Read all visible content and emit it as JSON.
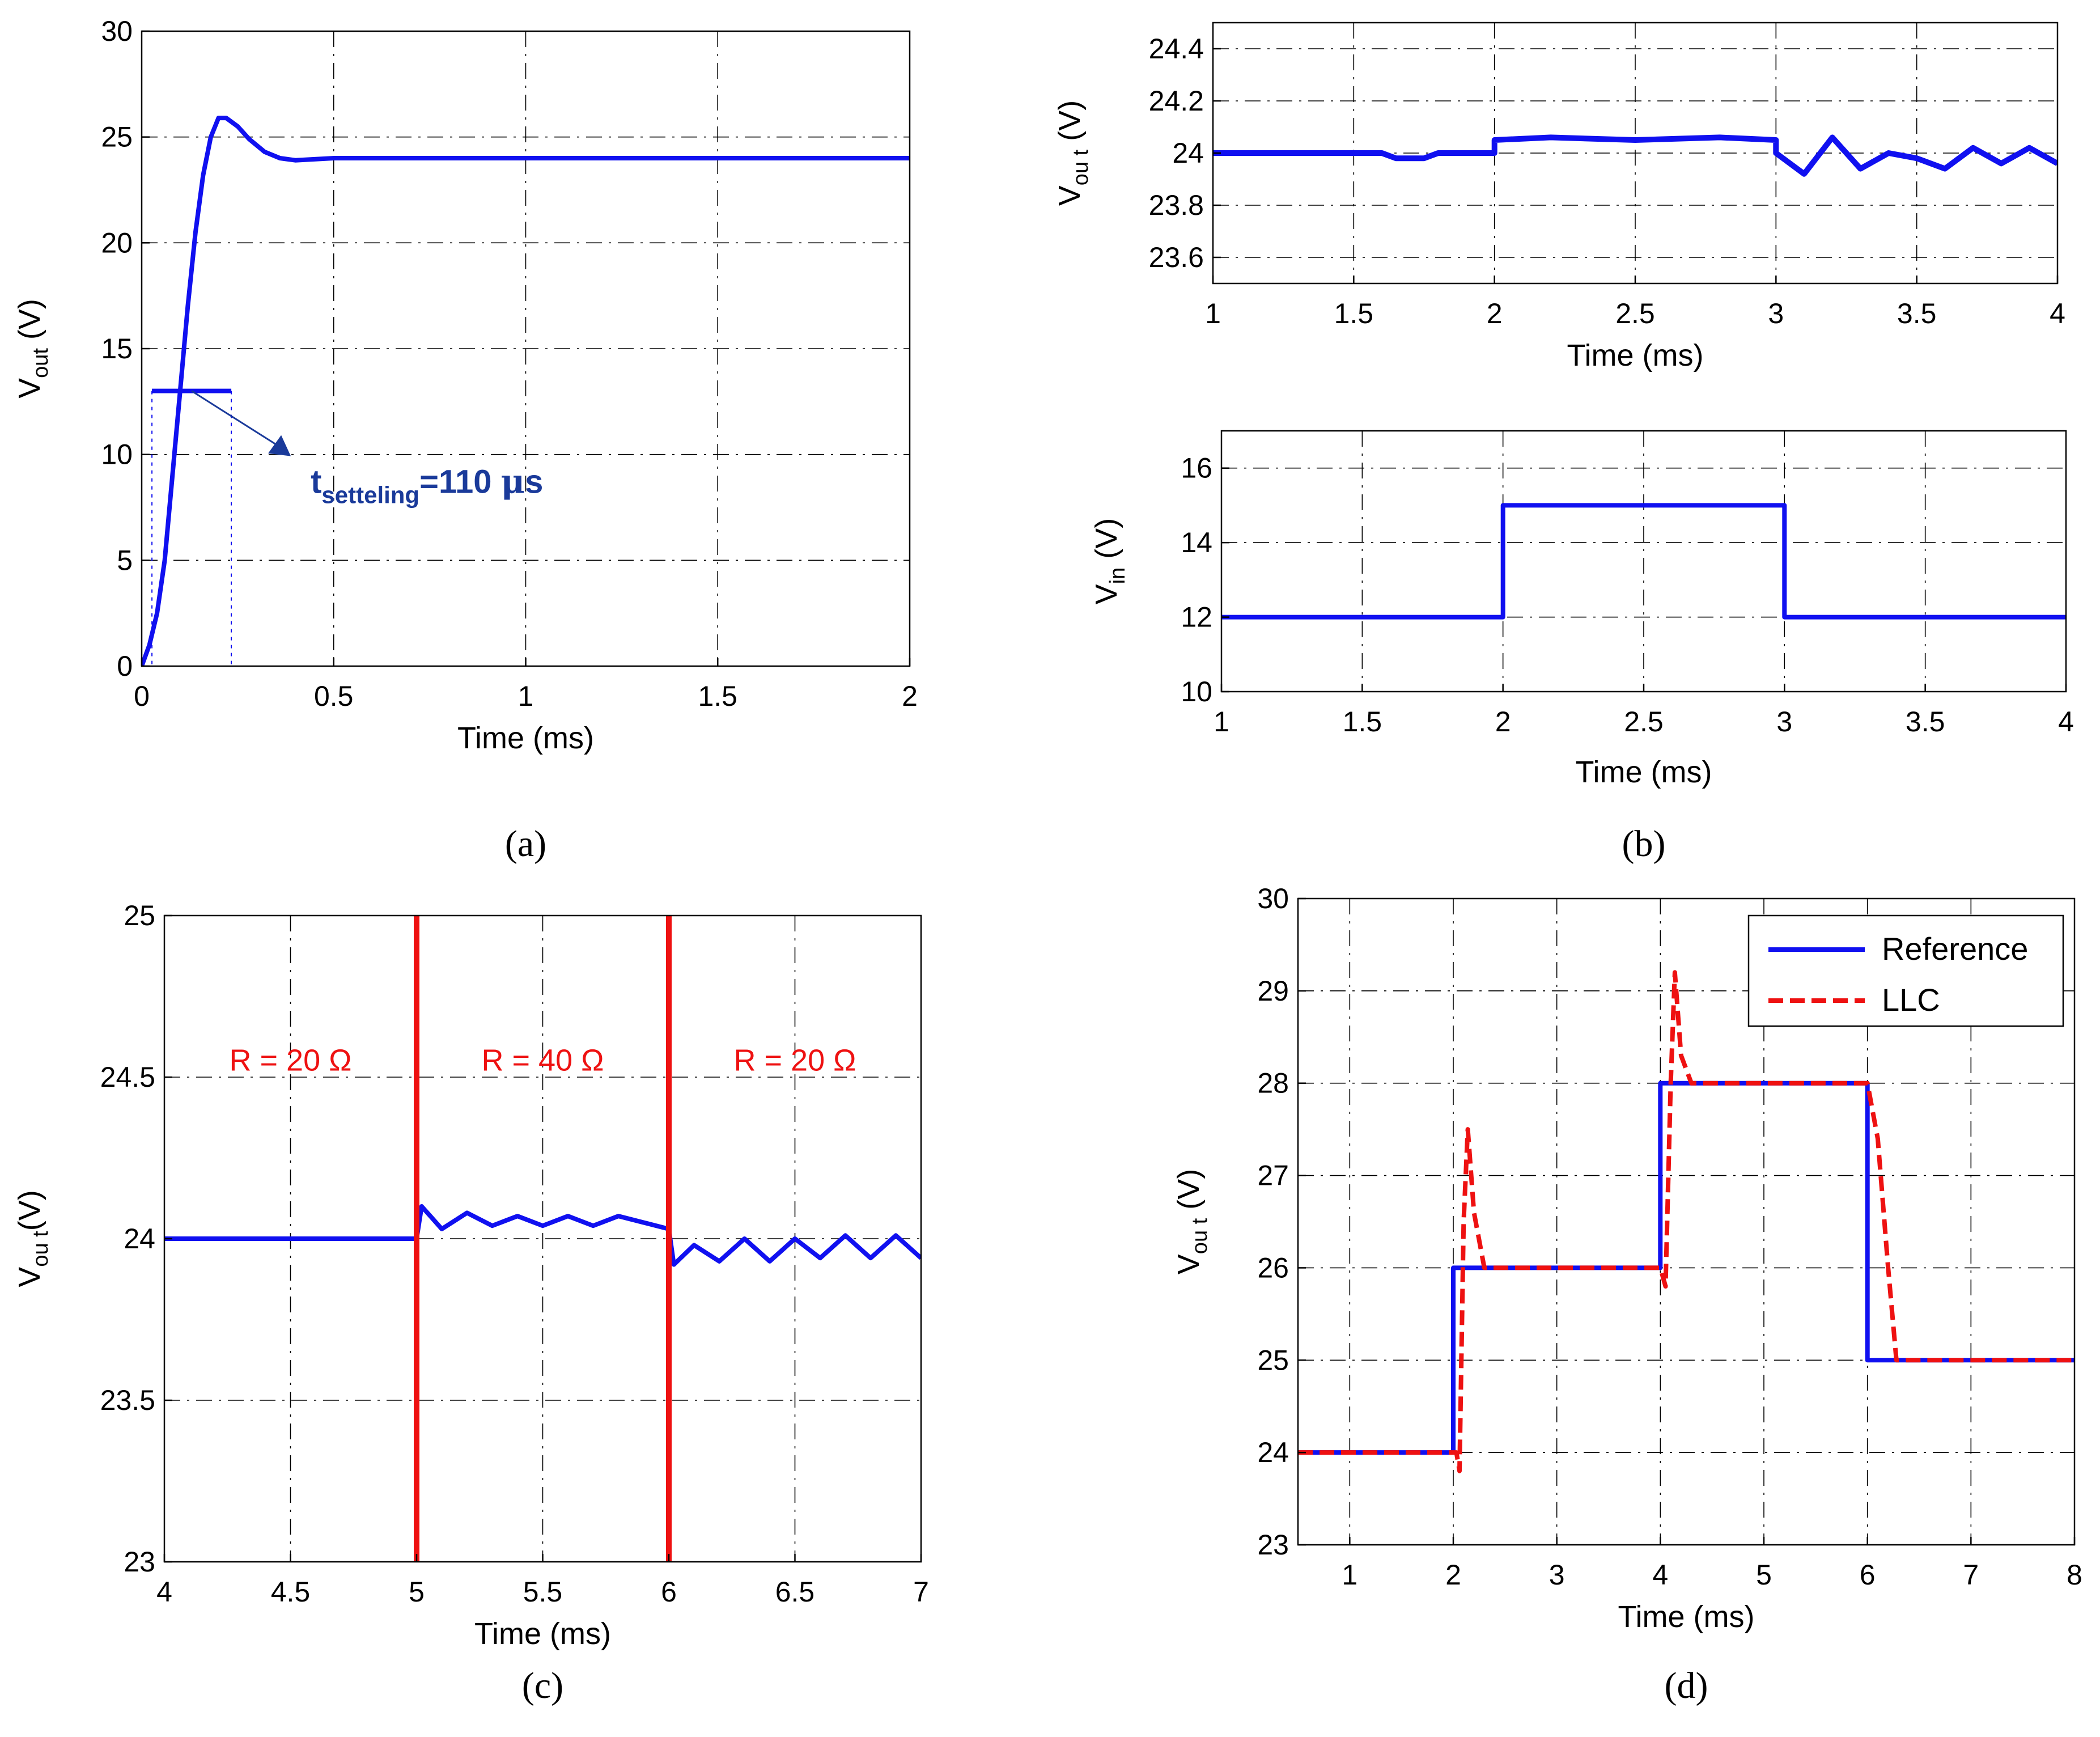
{
  "chart_data": [
    {
      "id": "a",
      "type": "line",
      "caption": "(a)",
      "xlabel": "Time (ms)",
      "ylabel": {
        "main": "V",
        "sub": "out",
        "rest": " (V)"
      },
      "xlim": [
        0,
        2
      ],
      "ylim": [
        0,
        30
      ],
      "xticks": [
        0,
        0.5,
        1,
        1.5,
        2
      ],
      "yticks": [
        0,
        5,
        10,
        15,
        20,
        25,
        30
      ],
      "series": [
        {
          "name": "Vout",
          "color": "#1010f0",
          "points": [
            [
              0,
              0
            ],
            [
              0.02,
              1
            ],
            [
              0.04,
              2.5
            ],
            [
              0.06,
              5
            ],
            [
              0.08,
              9
            ],
            [
              0.1,
              13
            ],
            [
              0.12,
              17
            ],
            [
              0.14,
              20.5
            ],
            [
              0.16,
              23.2
            ],
            [
              0.18,
              25
            ],
            [
              0.2,
              25.9
            ],
            [
              0.22,
              25.9
            ],
            [
              0.25,
              25.5
            ],
            [
              0.28,
              24.9
            ],
            [
              0.32,
              24.3
            ],
            [
              0.36,
              24
            ],
            [
              0.4,
              23.9
            ],
            [
              0.5,
              24
            ],
            [
              2,
              24
            ]
          ]
        }
      ],
      "annotation": {
        "main": "t",
        "sub": "setteling",
        "rest": "=110 ",
        "mu": "μ",
        "unit": "s",
        "color": "#1a3a9a",
        "x": 0.13,
        "y": 13
      }
    },
    {
      "id": "b_top",
      "type": "line",
      "xlabel": "Time (ms)",
      "ylabel": {
        "main": "V",
        "sub": "ou t",
        "rest": " (V)"
      },
      "xlim": [
        1,
        4
      ],
      "ylim": [
        23.5,
        24.5
      ],
      "xticks": [
        1,
        1.5,
        2,
        2.5,
        3,
        3.5,
        4
      ],
      "yticks": [
        23.6,
        23.8,
        24,
        24.2,
        24.4
      ],
      "series": [
        {
          "name": "Vout",
          "color": "#1010f0",
          "points": [
            [
              1,
              24
            ],
            [
              1.6,
              24
            ],
            [
              1.65,
              23.98
            ],
            [
              1.75,
              23.98
            ],
            [
              1.8,
              24
            ],
            [
              2,
              24
            ],
            [
              2,
              24.05
            ],
            [
              2.2,
              24.06
            ],
            [
              2.5,
              24.05
            ],
            [
              2.8,
              24.06
            ],
            [
              3,
              24.05
            ],
            [
              3,
              24
            ],
            [
              3.1,
              23.92
            ],
            [
              3.2,
              24.06
            ],
            [
              3.3,
              23.94
            ],
            [
              3.4,
              24.0
            ],
            [
              3.5,
              23.98
            ],
            [
              3.6,
              23.94
            ],
            [
              3.7,
              24.02
            ],
            [
              3.8,
              23.96
            ],
            [
              3.9,
              24.02
            ],
            [
              4,
              23.96
            ]
          ]
        }
      ]
    },
    {
      "id": "b_bottom",
      "type": "line",
      "caption": "(b)",
      "xlabel": "Time (ms)",
      "ylabel": {
        "main": "V",
        "sub": "in",
        "rest": " (V)"
      },
      "xlim": [
        1,
        4
      ],
      "ylim": [
        10,
        17
      ],
      "xticks": [
        1,
        1.5,
        2,
        2.5,
        3,
        3.5,
        4
      ],
      "yticks": [
        10,
        12,
        14,
        16
      ],
      "series": [
        {
          "name": "Vin",
          "color": "#1010f0",
          "points": [
            [
              1,
              12
            ],
            [
              2,
              12
            ],
            [
              2,
              15
            ],
            [
              3,
              15
            ],
            [
              3,
              12
            ],
            [
              4,
              12
            ]
          ]
        }
      ]
    },
    {
      "id": "c",
      "type": "line",
      "caption": "(c)",
      "xlabel": "Time (ms)",
      "ylabel": {
        "main": "V",
        "sub": "ou t",
        "rest": "(V)"
      },
      "xlim": [
        4,
        7
      ],
      "ylim": [
        23,
        25
      ],
      "xticks": [
        4,
        4.5,
        5,
        5.5,
        6,
        6.5,
        7
      ],
      "yticks": [
        23,
        23.5,
        24,
        24.5,
        25
      ],
      "series": [
        {
          "name": "Vout",
          "color": "#1010f0",
          "points": [
            [
              4,
              24
            ],
            [
              5,
              24
            ],
            [
              5.02,
              24.1
            ],
            [
              5.1,
              24.03
            ],
            [
              5.2,
              24.08
            ],
            [
              5.3,
              24.04
            ],
            [
              5.4,
              24.07
            ],
            [
              5.5,
              24.04
            ],
            [
              5.6,
              24.07
            ],
            [
              5.7,
              24.04
            ],
            [
              5.8,
              24.07
            ],
            [
              5.9,
              24.05
            ],
            [
              6,
              24.03
            ],
            [
              6.02,
              23.92
            ],
            [
              6.1,
              23.98
            ],
            [
              6.2,
              23.93
            ],
            [
              6.3,
              24.0
            ],
            [
              6.4,
              23.93
            ],
            [
              6.5,
              24.0
            ],
            [
              6.6,
              23.94
            ],
            [
              6.7,
              24.01
            ],
            [
              6.8,
              23.94
            ],
            [
              6.9,
              24.01
            ],
            [
              7,
              23.94
            ]
          ]
        }
      ],
      "markers": [
        {
          "x": 5,
          "color": "#ee1111"
        },
        {
          "x": 6,
          "color": "#ee1111"
        }
      ],
      "labels": [
        {
          "text": "R = 20 Ω",
          "x": 4.5,
          "y": 24.52,
          "color": "#ee1111"
        },
        {
          "text": "R = 40 Ω",
          "x": 5.5,
          "y": 24.52,
          "color": "#ee1111"
        },
        {
          "text": "R = 20 Ω",
          "x": 6.5,
          "y": 24.52,
          "color": "#ee1111"
        }
      ]
    },
    {
      "id": "d",
      "type": "line",
      "caption": "(d)",
      "xlabel": "Time (ms)",
      "ylabel": {
        "main": "V",
        "sub": "ou t",
        "rest": " (V)"
      },
      "xlim": [
        0.5,
        8
      ],
      "ylim": [
        23,
        30
      ],
      "xticks": [
        1,
        2,
        3,
        4,
        5,
        6,
        7,
        8
      ],
      "yticks": [
        23,
        24,
        25,
        26,
        27,
        28,
        29,
        30
      ],
      "legend": {
        "position": "top-right"
      },
      "series": [
        {
          "name": "Reference",
          "color": "#1010f0",
          "dash": false,
          "points": [
            [
              0.5,
              24
            ],
            [
              2,
              24
            ],
            [
              2,
              26
            ],
            [
              4,
              26
            ],
            [
              4,
              28
            ],
            [
              6,
              28
            ],
            [
              6,
              25
            ],
            [
              8,
              25
            ]
          ]
        },
        {
          "name": "LLC",
          "color": "#ee1111",
          "dash": true,
          "points": [
            [
              0.5,
              24
            ],
            [
              2.03,
              24
            ],
            [
              2.06,
              23.8
            ],
            [
              2.1,
              26.5
            ],
            [
              2.14,
              27.5
            ],
            [
              2.2,
              26.6
            ],
            [
              2.3,
              26
            ],
            [
              4.0,
              26
            ],
            [
              4.05,
              25.8
            ],
            [
              4.1,
              28
            ],
            [
              4.14,
              29.2
            ],
            [
              4.2,
              28.3
            ],
            [
              4.3,
              28
            ],
            [
              6.0,
              28
            ],
            [
              6.1,
              27.4
            ],
            [
              6.2,
              26
            ],
            [
              6.28,
              25
            ],
            [
              8,
              25
            ]
          ]
        }
      ]
    }
  ]
}
